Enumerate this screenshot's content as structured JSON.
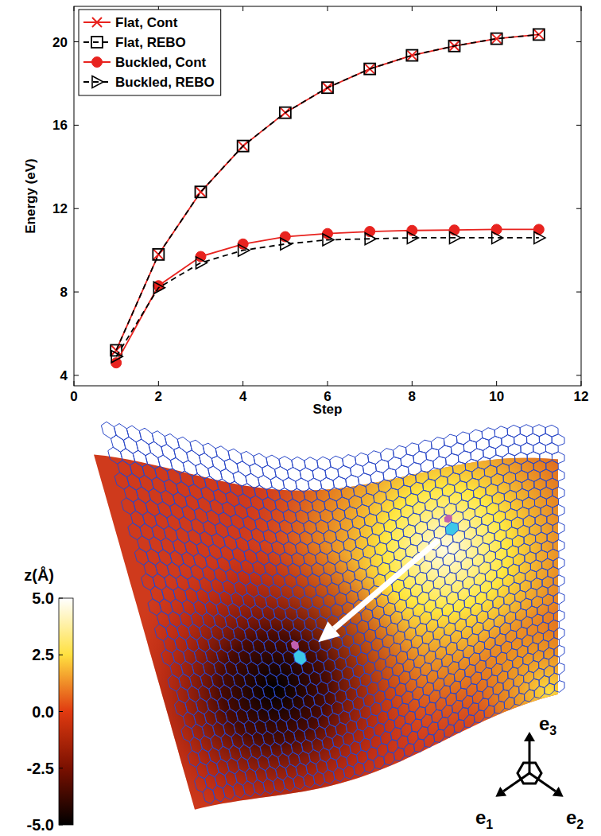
{
  "chart_data": [
    {
      "type": "line",
      "x": [
        1,
        2,
        3,
        4,
        5,
        6,
        7,
        8,
        9,
        10,
        11
      ],
      "xlim": [
        0,
        12
      ],
      "xticks": [
        0,
        2,
        4,
        6,
        8,
        10,
        12
      ],
      "ylim": [
        3.5,
        21.7
      ],
      "yticks": [
        4,
        8,
        12,
        16,
        20
      ],
      "x_label": "Step",
      "y_label": "Energy (eV)",
      "legend": "upper left",
      "series": [
        {
          "name": "Flat, Cont",
          "color": "#e8231f",
          "marker": "x",
          "line_style": "solid",
          "values": [
            5.2,
            9.8,
            12.8,
            15.0,
            16.6,
            17.8,
            18.7,
            19.35,
            19.8,
            20.15,
            20.35
          ]
        },
        {
          "name": "Flat, REBO",
          "color": "#000000",
          "marker": "square",
          "line_style": "dashed",
          "values": [
            5.2,
            9.8,
            12.8,
            15.0,
            16.6,
            17.8,
            18.7,
            19.35,
            19.8,
            20.15,
            20.35
          ]
        },
        {
          "name": "Buckled, Cont",
          "color": "#e8231f",
          "marker": "circle",
          "line_style": "solid",
          "values": [
            4.6,
            8.3,
            9.7,
            10.3,
            10.65,
            10.8,
            10.9,
            10.95,
            10.97,
            11.0,
            11.0
          ]
        },
        {
          "name": "Buckled, REBO",
          "color": "#000000",
          "marker": "triangle",
          "line_style": "dashed",
          "values": [
            4.9,
            8.2,
            9.4,
            10.0,
            10.3,
            10.5,
            10.55,
            10.6,
            10.6,
            10.6,
            10.6
          ]
        }
      ]
    },
    {
      "type": "surface",
      "colorbar": {
        "title": "z(Å)",
        "range": [
          -5,
          5
        ],
        "ticks": [
          {
            "value": 5,
            "label": "5.0"
          },
          {
            "value": 2.5,
            "label": "2.5"
          },
          {
            "value": 0,
            "label": "0.0"
          },
          {
            "value": -2.5,
            "label": "-2.5"
          },
          {
            "value": -5,
            "label": "-5.0"
          }
        ]
      },
      "axis_labels": [
        "e1",
        "e2",
        "e3"
      ]
    }
  ]
}
